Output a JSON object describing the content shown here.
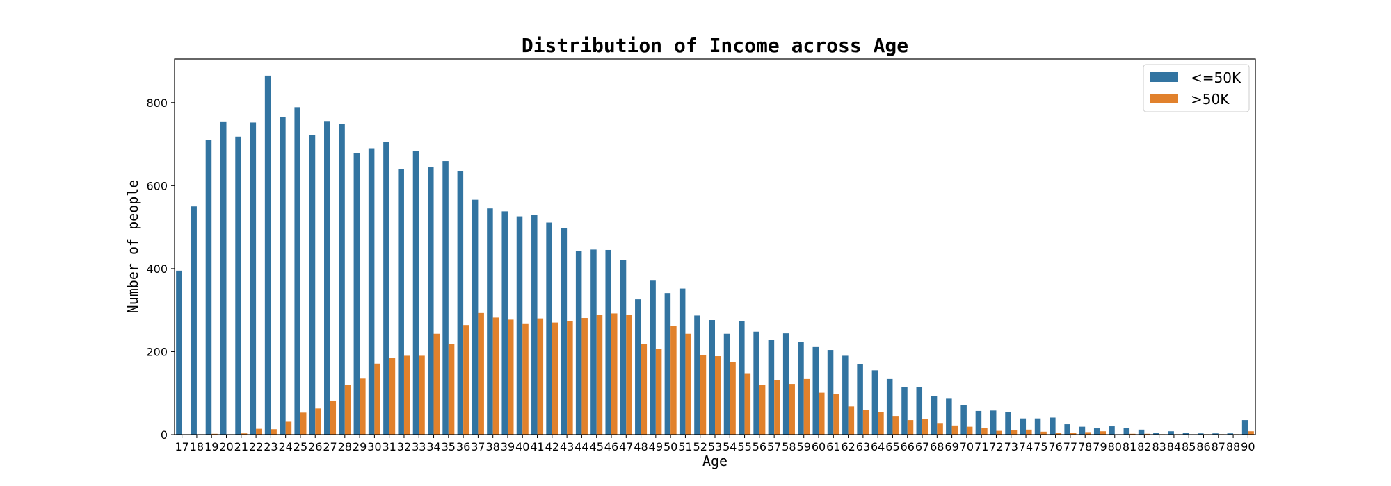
{
  "chart_data": {
    "type": "bar",
    "title": "Distribution of Income across Age",
    "xlabel": "Age",
    "ylabel": "Number of people",
    "ylim": [
      0,
      905
    ],
    "yticks": [
      0,
      200,
      400,
      600,
      800
    ],
    "grid": false,
    "legend_position": "top-right",
    "categories": [
      "17",
      "18",
      "19",
      "20",
      "21",
      "22",
      "23",
      "24",
      "25",
      "26",
      "27",
      "28",
      "29",
      "30",
      "31",
      "32",
      "33",
      "34",
      "35",
      "36",
      "37",
      "38",
      "39",
      "40",
      "41",
      "42",
      "43",
      "44",
      "45",
      "46",
      "47",
      "48",
      "49",
      "50",
      "51",
      "52",
      "53",
      "54",
      "55",
      "56",
      "57",
      "58",
      "59",
      "60",
      "61",
      "62",
      "63",
      "64",
      "65",
      "66",
      "67",
      "68",
      "69",
      "70",
      "71",
      "72",
      "73",
      "74",
      "75",
      "76",
      "77",
      "78",
      "79",
      "80",
      "81",
      "82",
      "83",
      "84",
      "85",
      "86",
      "87",
      "88",
      "90"
    ],
    "series": [
      {
        "name": "<=50K",
        "color": "#3274a1",
        "values": [
          395,
          550,
          710,
          753,
          718,
          752,
          865,
          766,
          789,
          721,
          754,
          748,
          679,
          690,
          705,
          639,
          684,
          644,
          659,
          635,
          566,
          545,
          538,
          526,
          529,
          511,
          497,
          443,
          446,
          445,
          420,
          326,
          371,
          341,
          352,
          287,
          276,
          243,
          273,
          248,
          229,
          244,
          223,
          211,
          204,
          190,
          170,
          155,
          134,
          115,
          115,
          93,
          88,
          71,
          57,
          58,
          55,
          39,
          39,
          41,
          25,
          19,
          15,
          20,
          16,
          12,
          4,
          8,
          4,
          3,
          3,
          3,
          35
        ]
      },
      {
        "name": ">50K",
        "color": "#e1812c",
        "values": [
          0,
          0,
          2,
          0,
          3,
          14,
          13,
          31,
          53,
          63,
          82,
          120,
          135,
          171,
          184,
          190,
          190,
          243,
          218,
          264,
          293,
          282,
          277,
          268,
          280,
          270,
          273,
          281,
          288,
          292,
          288,
          218,
          206,
          262,
          243,
          192,
          189,
          174,
          148,
          119,
          132,
          122,
          134,
          101,
          97,
          68,
          60,
          54,
          45,
          35,
          37,
          28,
          22,
          19,
          16,
          9,
          10,
          12,
          7,
          5,
          4,
          6,
          8,
          0,
          2,
          2,
          1,
          1,
          0,
          1,
          1,
          1,
          8
        ]
      }
    ]
  }
}
